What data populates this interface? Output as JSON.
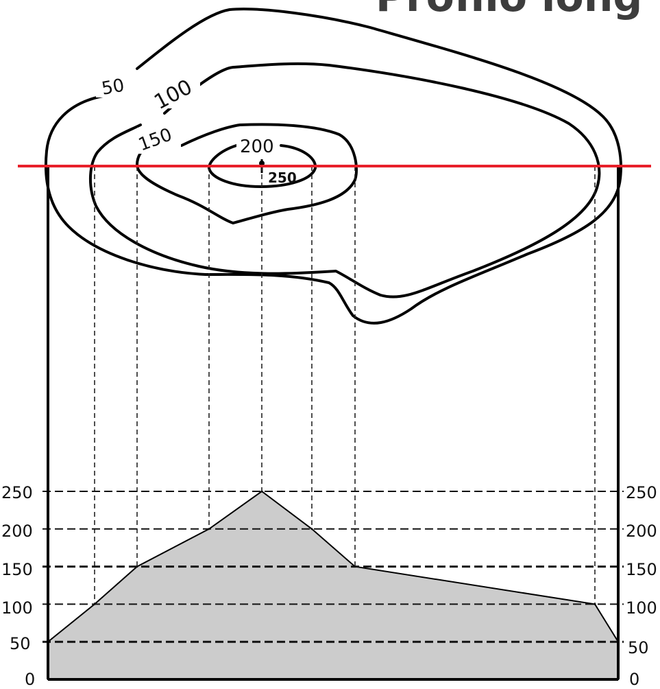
{
  "title": "Profilo long",
  "section_line_color": "#e8202a",
  "contour_labels": {
    "c50": "50",
    "c100": "100",
    "c150": "150",
    "c200": "200",
    "summit": "250"
  },
  "elevation_axis": {
    "left_ticks": [
      "250",
      "200",
      "150",
      "100",
      "50",
      "0"
    ],
    "right_ticks": [
      "250",
      "200",
      "150",
      "100",
      "50",
      "0"
    ]
  },
  "chart_data": {
    "type": "area",
    "ylim": [
      0,
      250
    ],
    "profile_elevations": [
      50,
      100,
      150,
      200,
      250,
      200,
      150,
      100,
      50
    ],
    "fill_color": "#cccccc"
  }
}
